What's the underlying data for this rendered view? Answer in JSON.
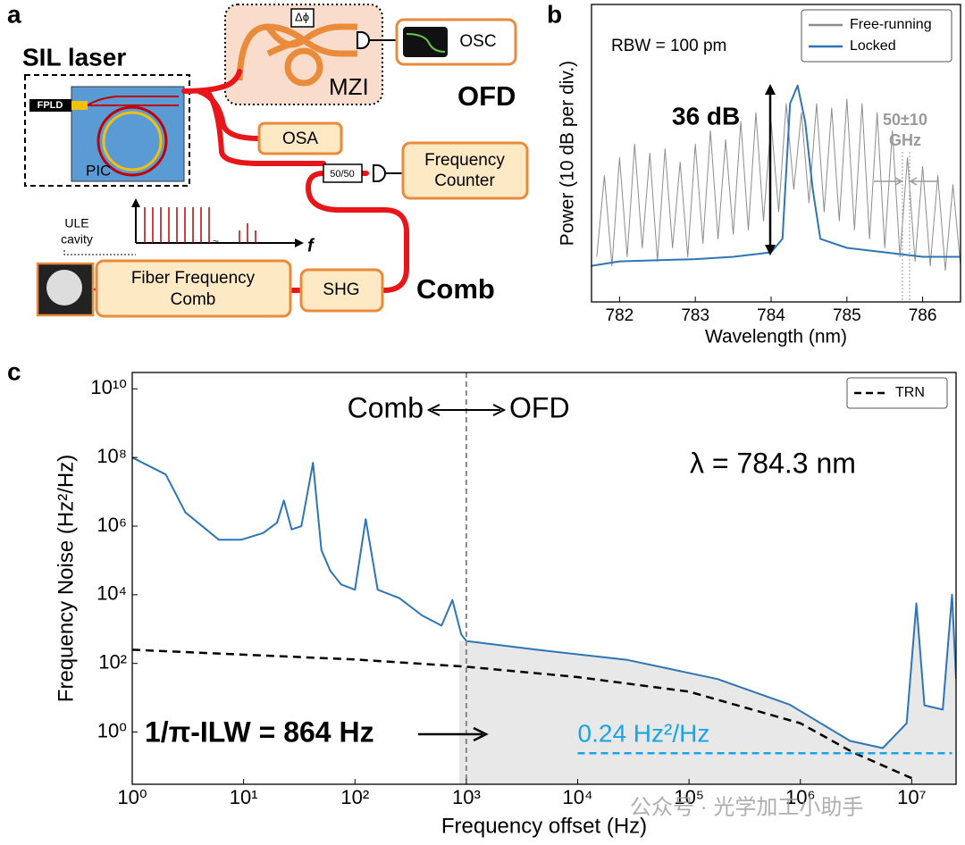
{
  "diagram": {
    "panel_label": "a",
    "sil_label": "SIL laser",
    "fpld": "FPLD",
    "pic": "PIC",
    "phase": "Δϕ",
    "mzi": "MZI",
    "osc": "OSC",
    "ofd": "OFD",
    "osa": "OSA",
    "splitter": "50/50",
    "freq_counter": [
      "Frequency",
      "Counter"
    ],
    "ule": [
      "ULE",
      "cavity"
    ],
    "f_axis": "f",
    "fiber_comb": [
      "Fiber Frequency",
      "Comb"
    ],
    "shg": "SHG",
    "comb": "Comb"
  },
  "chart_data": [
    {
      "type": "line",
      "panel_label": "b",
      "xlabel": "Wavelength (nm)",
      "ylabel": "Power (10 dB per div.)",
      "xlim": [
        781.63,
        786.5
      ],
      "xticks": [
        782,
        783,
        784,
        785,
        786
      ],
      "ylim": [
        0,
        66
      ],
      "legend": "upper right",
      "annotations": {
        "rbw": "RBW = 100 pm",
        "contrast": "36 dB",
        "fsr": [
          "50±10",
          "GHz"
        ]
      },
      "series": [
        {
          "name": "Free-running",
          "color": "#8c8c8c",
          "x": [
            781.7,
            781.8,
            781.9,
            782.0,
            782.1,
            782.2,
            782.3,
            782.4,
            782.5,
            782.6,
            782.7,
            782.8,
            782.9,
            783.0,
            783.1,
            783.2,
            783.3,
            783.4,
            783.5,
            783.6,
            783.7,
            783.8,
            783.9,
            784.0,
            784.1,
            784.2,
            784.3,
            784.4,
            784.5,
            784.6,
            784.7,
            784.8,
            784.9,
            785.0,
            785.1,
            785.2,
            785.3,
            785.4,
            785.5,
            785.6,
            785.7,
            785.8,
            785.9,
            786.0,
            786.1,
            786.2,
            786.3,
            786.4,
            786.5
          ],
          "values": [
            10,
            28,
            8,
            32,
            10,
            35,
            12,
            33,
            9,
            34,
            12,
            31,
            10,
            35,
            13,
            38,
            14,
            36,
            15,
            40,
            16,
            42,
            18,
            40,
            20,
            44,
            25,
            42,
            22,
            44,
            20,
            43,
            18,
            45,
            16,
            44,
            14,
            42,
            12,
            38,
            10,
            32,
            9,
            30,
            8,
            28,
            7,
            26,
            8
          ]
        },
        {
          "name": "Locked",
          "color": "#2e75b6",
          "x": [
            781.63,
            782,
            783,
            783.5,
            784,
            784.15,
            784.25,
            784.35,
            784.45,
            784.55,
            784.65,
            785,
            785.5,
            786,
            786.5
          ],
          "values": [
            8,
            9,
            9.5,
            10,
            11,
            14,
            44,
            48,
            40,
            25,
            14,
            12,
            11,
            10,
            10
          ]
        }
      ]
    },
    {
      "type": "line",
      "panel_label": "c",
      "log_x": true,
      "log_y": true,
      "xlabel": "Frequency offset (Hz)",
      "ylabel": "Frequency Noise (Hz²/Hz)",
      "xlim": [
        1,
        25000000
      ],
      "ylim": [
        0.03,
        30000000000
      ],
      "xticks": [
        {
          "value": 1,
          "label": "10⁰"
        },
        {
          "value": 10,
          "label": "10¹"
        },
        {
          "value": 100,
          "label": "10²"
        },
        {
          "value": 1000,
          "label": "10³"
        },
        {
          "value": 10000,
          "label": "10⁴"
        },
        {
          "value": 100000,
          "label": "10⁵"
        },
        {
          "value": 1000000,
          "label": "10⁶"
        },
        {
          "value": 10000000,
          "label": "10⁷"
        }
      ],
      "yticks": [
        {
          "value": 1,
          "label": "10⁰"
        },
        {
          "value": 100,
          "label": "10²"
        },
        {
          "value": 10000,
          "label": "10⁴"
        },
        {
          "value": 1000000,
          "label": "10⁶"
        },
        {
          "value": 100000000,
          "label": "10⁸"
        },
        {
          "value": 10000000000,
          "label": "10¹⁰"
        }
      ],
      "legend": "upper right",
      "vline": 1000,
      "hline": {
        "value": 0.24,
        "from": 10000,
        "to": 23000000,
        "color": "#1aa3e8",
        "label": "0.24 Hz²/Hz"
      },
      "annotations": {
        "left": "Comb",
        "right": "OFD",
        "wavelength": "λ = 784.3 nm",
        "linewidth": "1/π-ILW = 864 Hz"
      },
      "watermark": "公众号 · 光学加工小助手",
      "series": [
        {
          "color": "#2e75b6",
          "x": [
            1,
            2,
            3,
            6,
            9.5,
            15,
            20,
            23,
            27,
            33,
            42,
            50,
            60,
            75,
            100,
            125,
            160,
            250,
            400,
            600,
            750,
            900,
            1000,
            4300,
            28000,
            180000,
            800000,
            2800000,
            5500000,
            9000000,
            11000000,
            13000000,
            19000000,
            23000000,
            25000000
          ],
          "values": [
            100000000,
            32000000,
            2500000,
            400000,
            400000,
            630000,
            1260000,
            5600000,
            800000,
            1000000,
            70000000,
            200000,
            50000,
            20000,
            14000,
            1600000,
            14000,
            8000,
            2500,
            1260,
            7000,
            700,
            450,
            250,
            126,
            35,
            6.3,
            0.55,
            0.34,
            1.8,
            5600,
            6,
            4.5,
            10000,
            35
          ]
        },
        {
          "name": "TRN",
          "color": "#000000",
          "dash": true,
          "x": [
            1,
            10,
            100,
            1000,
            10000,
            100000,
            1000000,
            3000000,
            10000000
          ],
          "values": [
            250,
            180,
            130,
            80,
            40,
            15,
            1.8,
            0.25,
            0.045
          ]
        }
      ]
    }
  ]
}
